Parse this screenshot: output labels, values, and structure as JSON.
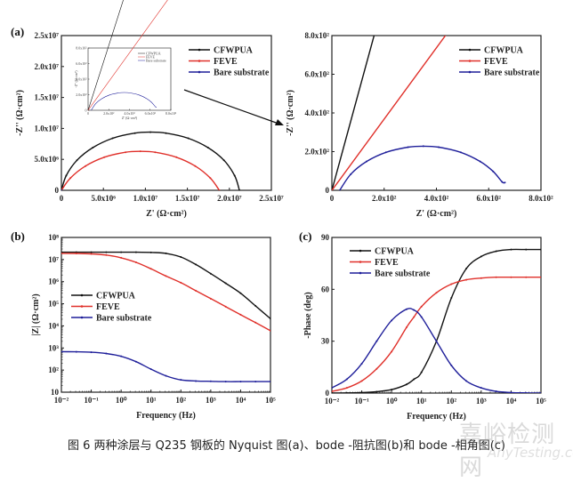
{
  "colors": {
    "CFWPUA": "#111111",
    "FEVE": "#e0302a",
    "Bare substrate": "#1f1f9a"
  },
  "caption": "图 6  两种涂层与 Q235 钢板的 Nyquist 图(a)、bode -阻抗图(b)和 bode -相角图(c)",
  "watermark": "嘉峪检测网",
  "watermark_sub": "AnyTesting.com",
  "chart_data": [
    {
      "id": "a",
      "panel_label": "(a)",
      "type": "line",
      "xlabel": "Z' (Ω·cm²)",
      "ylabel": "-Z'' (Ω·cm²)",
      "xlim": [
        0,
        25000000.0
      ],
      "ylim": [
        0,
        25000000.0
      ],
      "xticks": [
        0,
        5000000.0,
        10000000.0,
        15000000.0,
        20000000.0,
        25000000.0
      ],
      "xtick_labels": [
        "0",
        "5.0x10⁶",
        "1.0x10⁷",
        "1.5x10⁷",
        "2.0x10⁷",
        "2.5x10⁷"
      ],
      "yticks": [
        0,
        5000000.0,
        10000000.0,
        15000000.0,
        20000000.0,
        25000000.0
      ],
      "ytick_labels": [
        "0",
        "5.0x10⁶",
        "1.0x10⁷",
        "1.5x10⁷",
        "2.0x10⁷",
        "2.5x10⁷"
      ],
      "legend": "top-right",
      "series": [
        {
          "name": "CFWPUA",
          "x": [
            21200000.0,
            20630000.0,
            19350000.0,
            17460000.0,
            15110000.0,
            12450000.0,
            10600000.0,
            8750000.0,
            6090000.0,
            3740000.0,
            1850000.0,
            570000.0,
            0
          ],
          "y": [
            0,
            2370000.0,
            4850000.0,
            6900000.0,
            8400000.0,
            9240000.0,
            9400000.0,
            9240000.0,
            8400000.0,
            6900000.0,
            4850000.0,
            2370000.0,
            0
          ]
        },
        {
          "name": "FEVE",
          "x": [
            18800000.0,
            17730000.0,
            15930000.0,
            13690000.0,
            11160000.0,
            9400000.0,
            7640000.0,
            5110000.0,
            2870000.0,
            1070000.0,
            0
          ],
          "y": [
            0,
            1970000.0,
            3920000.0,
            5350000.0,
            6150000.0,
            6300000.0,
            6150000.0,
            5350000.0,
            3920000.0,
            1970000.0,
            0
          ]
        },
        {
          "name": "Bare substrate",
          "x": [
            30,
            72.6,
            132.4,
            206.9,
            291.2,
            350,
            408.8,
            493.1,
            567.6,
            616.8,
            651.7,
            662
          ],
          "y": [
            0,
            83.6,
            148.8,
            196.3,
            222.9,
            228,
            222.9,
            196.3,
            148.8,
            97.9,
            43.1,
            40
          ]
        }
      ],
      "inset": {
        "xlabel": "Z' (Ω·cm²)",
        "ylabel": "-Z'' (Ω·cm²)",
        "xlim": [
          0,
          800
        ],
        "ylim": [
          0,
          800
        ],
        "xticks": [
          0,
          200,
          400,
          600,
          800
        ],
        "xtick_labels": [
          "0",
          "2.0x10²",
          "4.0x10²",
          "6.0x10²",
          "8.0x10²"
        ],
        "yticks": [
          0,
          200,
          400,
          600,
          800
        ],
        "ytick_labels": [
          "0",
          "2.0x10²",
          "4.0x10²",
          "6.0x10²",
          "8.0x10²"
        ]
      }
    },
    {
      "id": "a-zoom",
      "panel_label": "",
      "type": "line",
      "xlabel": "Z' (Ω·cm²)",
      "ylabel": "-Z'' (Ω·cm²)",
      "xlim": [
        0,
        800
      ],
      "ylim": [
        0,
        800
      ],
      "xticks": [
        0,
        200,
        400,
        600,
        800
      ],
      "xtick_labels": [
        "0",
        "2.0x10²",
        "4.0x10²",
        "6.0x10²",
        "8.0x10²"
      ],
      "yticks": [
        0,
        200,
        400,
        600,
        800
      ],
      "ytick_labels": [
        "0",
        "2.0x10²",
        "4.0x10²",
        "6.0x10²",
        "8.0x10²"
      ],
      "legend": "top-right",
      "series_ref": "a"
    },
    {
      "id": "b",
      "panel_label": "(b)",
      "type": "line",
      "xlabel": "Frequency (Hz)",
      "ylabel": "|Z| (Ω·cm²)",
      "xscale": "log",
      "yscale": "log",
      "xlim": [
        0.01,
        100000
      ],
      "ylim": [
        10,
        100000000
      ],
      "xticks": [
        0.01,
        0.1,
        1,
        10,
        100,
        1000,
        10000,
        100000
      ],
      "xtick_labels": [
        "10⁻²",
        "10⁻¹",
        "10⁰",
        "10¹",
        "10²",
        "10³",
        "10⁴",
        "10⁵"
      ],
      "yticks": [
        10,
        100,
        1000,
        10000,
        100000,
        1000000,
        10000000,
        100000000
      ],
      "ytick_labels": [
        "10",
        "10²",
        "10³",
        "10⁴",
        "10⁵",
        "10⁶",
        "10⁷",
        "10⁸"
      ],
      "legend": "center-left",
      "x": [
        0.01,
        0.0316,
        0.1,
        0.316,
        1,
        3.16,
        10,
        31.6,
        100,
        316,
        1000,
        3162,
        10000,
        31623,
        100000
      ],
      "series": [
        {
          "name": "CFWPUA",
          "y": [
            21500000.0,
            21500000.0,
            21500000.0,
            21500000.0,
            21500000.0,
            21400000.0,
            21000000.0,
            19000000.0,
            13000000.0,
            6000000.0,
            2300000.0,
            850000.0,
            300000.0,
            80000.0,
            21000.0
          ]
        },
        {
          "name": "FEVE",
          "y": [
            19000000.0,
            18800000.0,
            18000000.0,
            16000000.0,
            12000000.0,
            7500000.0,
            3800000.0,
            1800000.0,
            900000.0,
            390000.0,
            170000.0,
            74000.0,
            32000.0,
            14000.0,
            6000.0
          ]
        },
        {
          "name": "Bare substrate",
          "y": [
            680,
            670,
            640,
            560,
            420,
            240,
            110,
            55,
            36,
            32,
            31,
            30,
            30,
            30,
            30
          ]
        }
      ]
    },
    {
      "id": "c",
      "panel_label": "(c)",
      "type": "line",
      "xlabel": "Frequency (Hz)",
      "ylabel": "-Phase (deg)",
      "xscale": "log",
      "xlim": [
        0.01,
        100000
      ],
      "ylim": [
        0,
        90
      ],
      "xticks": [
        0.01,
        0.1,
        1,
        10,
        100,
        1000,
        10000,
        100000
      ],
      "xtick_labels": [
        "10⁻²",
        "10⁻¹",
        "10⁰",
        "10¹",
        "10²",
        "10³",
        "10⁴",
        "10⁵"
      ],
      "yticks": [
        0,
        30,
        60,
        90
      ],
      "ytick_labels": [
        "0",
        "30",
        "60",
        "90"
      ],
      "legend": "top-left",
      "x": [
        0.01,
        0.0316,
        0.1,
        0.316,
        1,
        3.16,
        5.6,
        10,
        31.6,
        100,
        316,
        1000,
        3162,
        10000,
        31623,
        100000
      ],
      "series": [
        {
          "name": "CFWPUA",
          "y": [
            0,
            0.1,
            0.3,
            0.8,
            2,
            5,
            8,
            12,
            30,
            55,
            72,
            79,
            82,
            83,
            83,
            83
          ]
        },
        {
          "name": "FEVE",
          "y": [
            1,
            3,
            7,
            14,
            24,
            38,
            44,
            50,
            58,
            63,
            65.5,
            66.5,
            67,
            67,
            67,
            67
          ]
        },
        {
          "name": "Bare substrate",
          "y": [
            3,
            8,
            17,
            30,
            42,
            48.5,
            48,
            44,
            30,
            16,
            7,
            3,
            1,
            0.3,
            0.1,
            0
          ]
        }
      ]
    }
  ]
}
